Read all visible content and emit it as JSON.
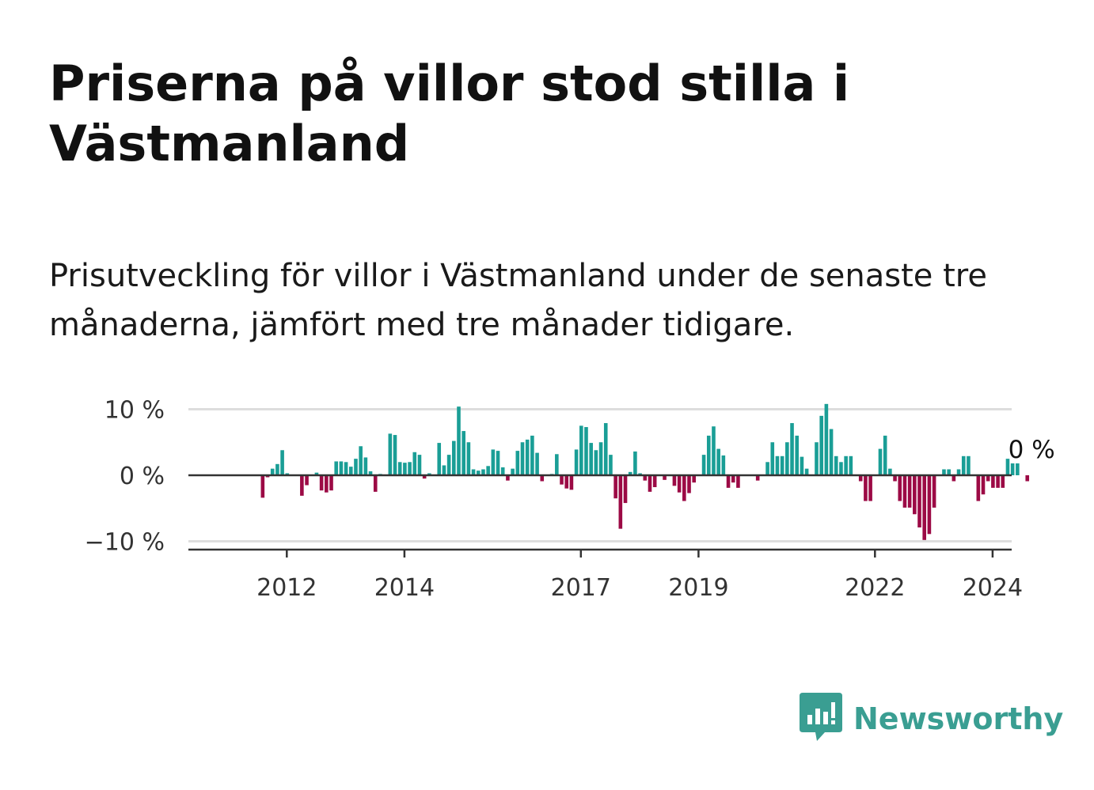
{
  "title": "Priserna på villor stod stilla i Västmanland",
  "subtitle": "Prisutveckling för villor i Västmanland under de senaste tre månaderna, jämfört med tre månader tidigare.",
  "brand": {
    "name": "Newsworthy",
    "icon": "newsworthy-logo-icon",
    "color": "#3a9e92"
  },
  "colors": {
    "positive": "#1a9e96",
    "negative": "#9c0a45",
    "zero_line": "#333333",
    "grid": "#dddddd"
  },
  "chart_data": {
    "type": "bar",
    "ylabel": "",
    "xlabel": "",
    "ylim": [
      -11,
      11
    ],
    "grid": true,
    "y_ticks": [
      {
        "value": 10,
        "label": "10 %"
      },
      {
        "value": 0,
        "label": "0 %"
      },
      {
        "value": -10,
        "label": "−10 %"
      }
    ],
    "x_ticks": [
      {
        "value": 2012,
        "label": "2012"
      },
      {
        "value": 2014,
        "label": "2014"
      },
      {
        "value": 2017,
        "label": "2017"
      },
      {
        "value": 2019,
        "label": "2019"
      },
      {
        "value": 2022,
        "label": "2022"
      },
      {
        "value": 2024,
        "label": "2024"
      }
    ],
    "x_start": 2011.0,
    "end_label": "0 %",
    "values": [
      0,
      0,
      0,
      0,
      0,
      0,
      0,
      0,
      -3.4,
      -0.3,
      1.0,
      1.7,
      3.8,
      0.3,
      0,
      0,
      -3.1,
      -1.5,
      0,
      0.4,
      -2.3,
      -2.6,
      -2.3,
      2.1,
      2.1,
      2.0,
      1.3,
      2.5,
      4.4,
      2.7,
      0.6,
      -2.5,
      0.2,
      0,
      6.3,
      6.1,
      2.0,
      1.9,
      2.0,
      3.5,
      3.1,
      -0.5,
      0.3,
      0,
      4.9,
      1.5,
      3.1,
      5.2,
      10.4,
      6.7,
      5.0,
      0.9,
      0.7,
      0.9,
      1.4,
      3.9,
      3.7,
      1.2,
      -0.8,
      1.0,
      3.7,
      5.0,
      5.4,
      6.0,
      3.4,
      -0.9,
      0,
      0.2,
      3.2,
      -1.4,
      -2.0,
      -2.2,
      3.9,
      7.5,
      7.3,
      4.9,
      3.8,
      5.0,
      7.9,
      3.1,
      -3.5,
      -8.1,
      -4.2,
      0.5,
      3.6,
      0.3,
      -0.8,
      -2.5,
      -1.8,
      0,
      -0.7,
      0,
      -1.6,
      -2.6,
      -3.9,
      -2.7,
      -1.1,
      0,
      3.1,
      6.0,
      7.4,
      4.0,
      3.0,
      -1.9,
      -1.1,
      -1.9,
      0,
      0,
      0,
      -0.8,
      0,
      2.0,
      5.0,
      2.9,
      2.9,
      5.0,
      7.9,
      6.0,
      2.8,
      1.0,
      0,
      5.0,
      9.0,
      10.8,
      7.0,
      2.9,
      2.0,
      2.9,
      2.9,
      0,
      -0.9,
      -3.9,
      -3.9,
      0,
      4.0,
      6.0,
      1.0,
      -0.9,
      -3.9,
      -4.9,
      -4.9,
      -5.9,
      -7.9,
      -9.8,
      -8.9,
      -4.9,
      0,
      0.9,
      0.9,
      -0.9,
      0.9,
      2.9,
      2.9,
      0,
      -3.9,
      -2.9,
      -0.9,
      -1.9,
      -1.9,
      -1.9,
      2.5,
      1.8,
      1.8,
      0,
      -0.9,
      0
    ]
  }
}
